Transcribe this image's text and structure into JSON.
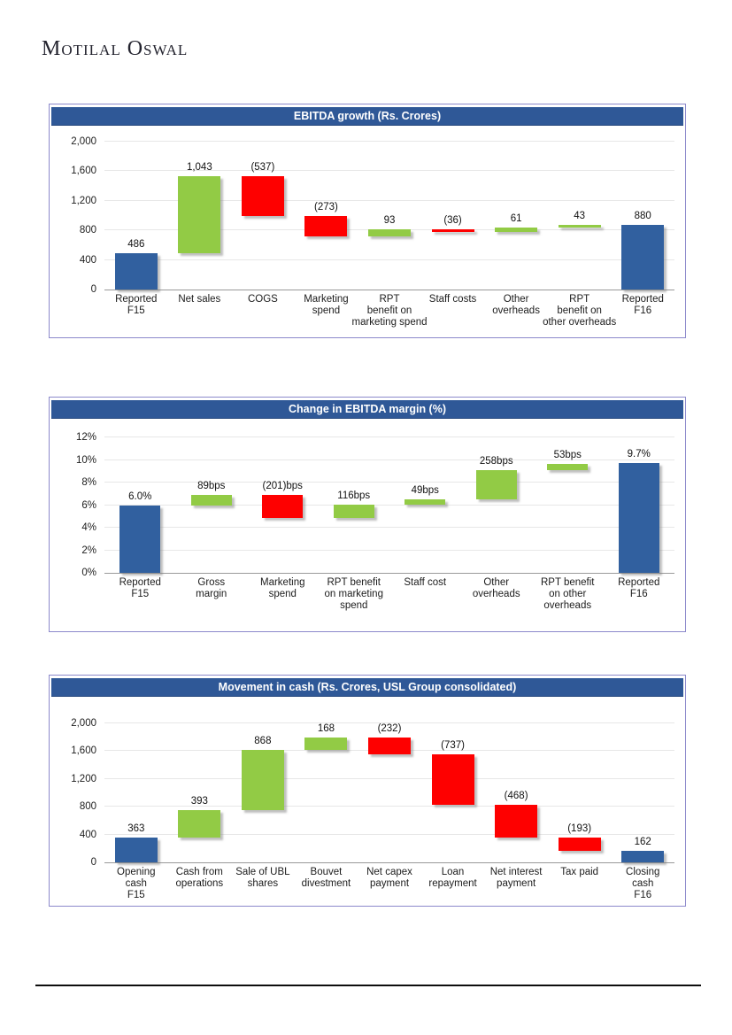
{
  "page": {
    "logo_text": "Motilal Oswal"
  },
  "colors": {
    "banner_bg": "#2F5897",
    "banner_text": "#FFFFFF",
    "total_bar": "#31609F",
    "increase_bar": "#92CB45",
    "decrease_bar": "#FE0000",
    "gridline": "#E7E7E7",
    "axis": "#999999",
    "box_border": "#8C89CB"
  },
  "chart_data": [
    {
      "type": "bar",
      "subtype": "waterfall",
      "title": "EBITDA growth (Rs. Crores)",
      "xlabel": "",
      "ylabel": "",
      "ylim": [
        0,
        2000
      ],
      "ytick_labels": [
        "0",
        "400",
        "800",
        "1,200",
        "1,600",
        "2,000"
      ],
      "ytick_values": [
        0,
        400,
        800,
        1200,
        1600,
        2000
      ],
      "grid": "horizontal",
      "legend": "none",
      "bars": [
        {
          "category": "Reported\nF15",
          "value": 486,
          "display": "486",
          "kind": "total"
        },
        {
          "category": "Net sales",
          "value": 1043,
          "display": "1,043",
          "kind": "increase"
        },
        {
          "category": "COGS",
          "value": -537,
          "display": "(537)",
          "kind": "decrease"
        },
        {
          "category": "Marketing\nspend",
          "value": -273,
          "display": "(273)",
          "kind": "decrease"
        },
        {
          "category": "RPT\nbenefit on\nmarketing spend",
          "value": 93,
          "display": "93",
          "kind": "increase"
        },
        {
          "category": "Staff costs",
          "value": -36,
          "display": "(36)",
          "kind": "decrease"
        },
        {
          "category": "Other\noverheads",
          "value": 61,
          "display": "61",
          "kind": "increase"
        },
        {
          "category": "RPT\nbenefit on\nother overheads",
          "value": 43,
          "display": "43",
          "kind": "increase"
        },
        {
          "category": "Reported\nF16",
          "value": 880,
          "display": "880",
          "kind": "total"
        }
      ]
    },
    {
      "type": "bar",
      "subtype": "waterfall",
      "title": "Change in EBITDA margin (%)",
      "xlabel": "",
      "ylabel": "",
      "ylim": [
        0,
        12
      ],
      "ytick_labels": [
        "0%",
        "2%",
        "4%",
        "6%",
        "8%",
        "10%",
        "12%"
      ],
      "ytick_values": [
        0,
        2,
        4,
        6,
        8,
        10,
        12
      ],
      "grid": "horizontal",
      "legend": "none",
      "bars": [
        {
          "category": "Reported\nF15",
          "value": 6.0,
          "display": "6.0%",
          "kind": "total"
        },
        {
          "category": "Gross\nmargin",
          "value": 0.89,
          "display": "89bps",
          "kind": "increase"
        },
        {
          "category": "Marketing\nspend",
          "value": -2.01,
          "display": "(201)bps",
          "kind": "decrease"
        },
        {
          "category": "RPT benefit\non marketing\nspend",
          "value": 1.16,
          "display": "116bps",
          "kind": "increase"
        },
        {
          "category": "Staff cost",
          "value": 0.49,
          "display": "49bps",
          "kind": "increase"
        },
        {
          "category": "Other\noverheads",
          "value": 2.58,
          "display": "258bps",
          "kind": "increase"
        },
        {
          "category": "RPT benefit\non other\noverheads",
          "value": 0.53,
          "display": "53bps",
          "kind": "increase"
        },
        {
          "category": "Reported\nF16",
          "value": 9.7,
          "display": "9.7%",
          "kind": "total"
        }
      ]
    },
    {
      "type": "bar",
      "subtype": "waterfall",
      "title": "Movement in cash (Rs. Crores, USL Group consolidated)",
      "xlabel": "",
      "ylabel": "",
      "ylim": [
        0,
        2000
      ],
      "ytick_labels": [
        "0",
        "400",
        "800",
        "1,200",
        "1,600",
        "2,000"
      ],
      "ytick_values": [
        0,
        400,
        800,
        1200,
        1600,
        2000
      ],
      "grid": "horizontal",
      "legend": "none",
      "bars": [
        {
          "category": "Opening\ncash\nF15",
          "value": 363,
          "display": "363",
          "kind": "total"
        },
        {
          "category": "Cash from\noperations",
          "value": 393,
          "display": "393",
          "kind": "increase"
        },
        {
          "category": "Sale of UBL\nshares",
          "value": 868,
          "display": "868",
          "kind": "increase"
        },
        {
          "category": "Bouvet\ndivestment",
          "value": 168,
          "display": "168",
          "kind": "increase"
        },
        {
          "category": "Net capex\npayment",
          "value": -232,
          "display": "(232)",
          "kind": "decrease"
        },
        {
          "category": "Loan\nrepayment",
          "value": -737,
          "display": "(737)",
          "kind": "decrease"
        },
        {
          "category": "Net interest\npayment",
          "value": -468,
          "display": "(468)",
          "kind": "decrease"
        },
        {
          "category": "Tax paid",
          "value": -193,
          "display": "(193)",
          "kind": "decrease"
        },
        {
          "category": "Closing\ncash\nF16",
          "value": 162,
          "display": "162",
          "kind": "total"
        }
      ]
    }
  ]
}
